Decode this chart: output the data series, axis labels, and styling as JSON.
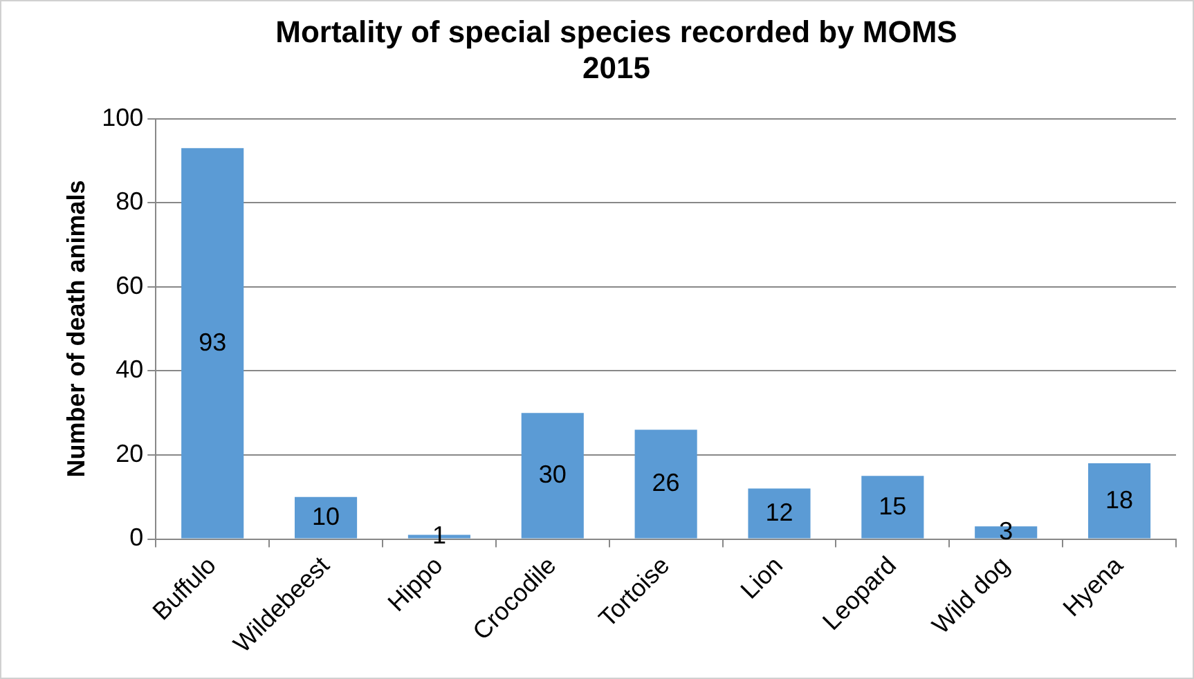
{
  "chart_data": {
    "type": "bar",
    "title": [
      "Mortality of special species recorded by MOMS",
      "2015"
    ],
    "ylabel": "Number of death animals",
    "categories": [
      "Buffulo",
      "Wildebeest",
      "Hippo",
      "Crocodile",
      "Tortoise",
      "Lion",
      "Leopard",
      "Wild dog",
      "Hyena"
    ],
    "values": [
      93,
      10,
      1,
      30,
      26,
      12,
      15,
      3,
      18
    ],
    "color": "#5b9bd5",
    "ylim": [
      0,
      100
    ],
    "yticks": [
      0,
      20,
      40,
      60,
      80,
      100
    ],
    "grid": "y",
    "data_labels": true
  }
}
